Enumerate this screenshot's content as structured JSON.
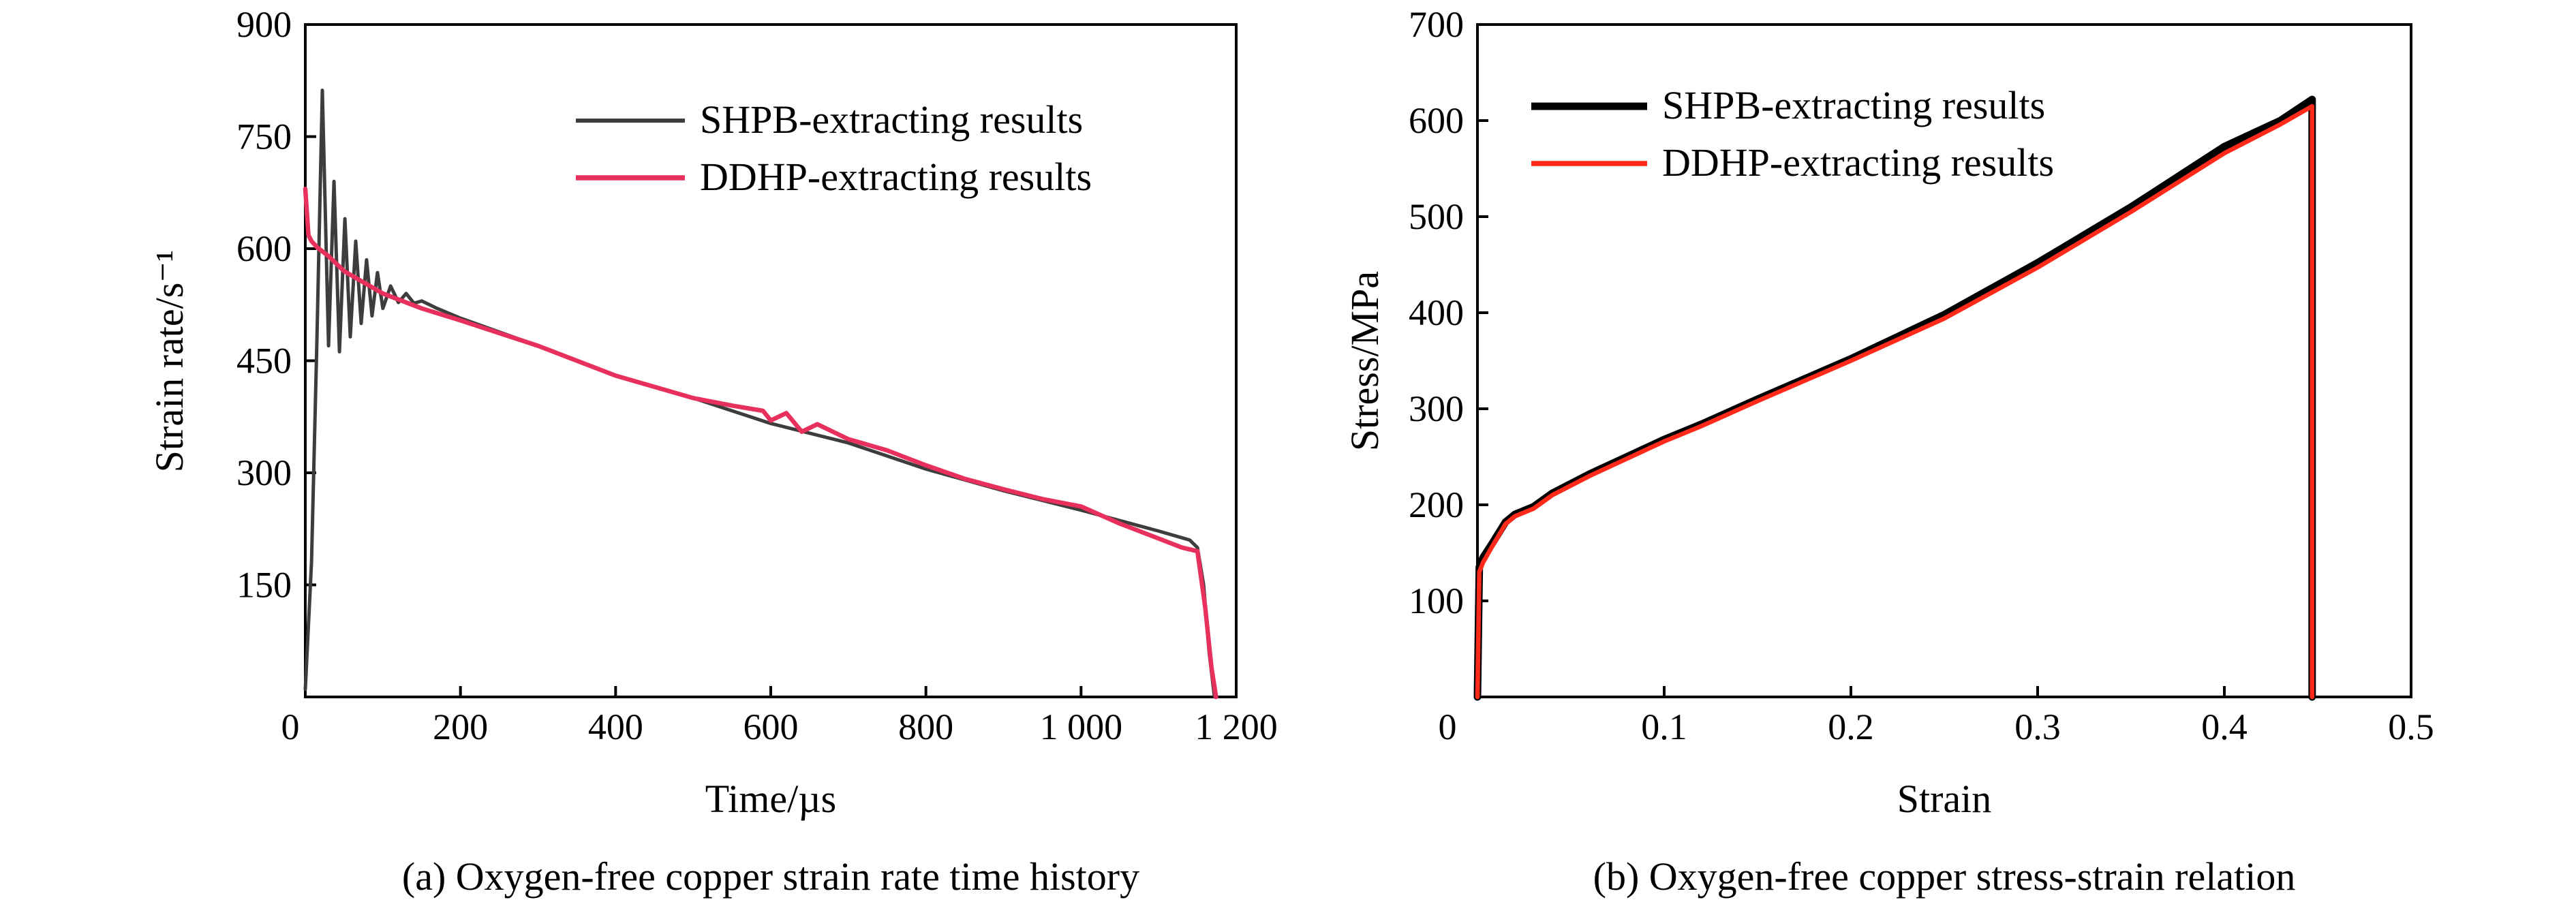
{
  "chart_data": [
    {
      "type": "line",
      "caption": "(a) Oxygen-free copper strain rate time history",
      "xlabel": "Time/µs",
      "ylabel": "Strain rate/s⁻¹",
      "xlim": [
        0,
        1200
      ],
      "ylim": [
        0,
        900
      ],
      "xticks": [
        0,
        200,
        400,
        600,
        800,
        1000,
        1200
      ],
      "xtick_labels": [
        "0",
        "200",
        "400",
        "600",
        "800",
        "1 000",
        "1 200"
      ],
      "yticks": [
        150,
        300,
        450,
        600,
        750,
        900
      ],
      "ytick_labels": [
        "150",
        "300",
        "450",
        "600",
        "750",
        "900"
      ],
      "grid": false,
      "legend_position": "top-right",
      "series": [
        {
          "name": "SHPB-extracting results",
          "color": "#3d3d3d",
          "x": [
            0,
            8,
            15,
            22,
            30,
            37,
            44,
            51,
            58,
            65,
            72,
            79,
            86,
            93,
            100,
            110,
            120,
            130,
            140,
            150,
            170,
            200,
            300,
            400,
            500,
            600,
            700,
            800,
            900,
            1000,
            1100,
            1140,
            1150,
            1158,
            1165,
            1172
          ],
          "y": [
            10,
            180,
            480,
            812,
            470,
            690,
            462,
            640,
            482,
            610,
            500,
            585,
            510,
            568,
            520,
            550,
            528,
            540,
            527,
            530,
            520,
            507,
            470,
            430,
            400,
            366,
            340,
            305,
            276,
            250,
            222,
            210,
            200,
            150,
            60,
            0
          ]
        },
        {
          "name": "DDHP-extracting results",
          "color": "#e8305c",
          "x": [
            0,
            4,
            8,
            15,
            30,
            50,
            100,
            150,
            200,
            300,
            400,
            500,
            550,
            590,
            600,
            620,
            640,
            660,
            700,
            750,
            800,
            850,
            900,
            950,
            1000,
            1050,
            1100,
            1130,
            1150,
            1160,
            1168,
            1174
          ],
          "y": [
            680,
            618,
            610,
            602,
            590,
            570,
            540,
            520,
            504,
            470,
            430,
            400,
            390,
            383,
            370,
            380,
            355,
            365,
            345,
            330,
            310,
            292,
            278,
            265,
            255,
            232,
            212,
            200,
            195,
            120,
            40,
            0
          ]
        }
      ]
    },
    {
      "type": "line",
      "caption": "(b) Oxygen-free copper stress-strain relation",
      "xlabel": "Strain",
      "ylabel": "Stress/MPa",
      "xlim": [
        0,
        0.5
      ],
      "ylim": [
        0,
        700
      ],
      "xticks": [
        0,
        0.1,
        0.2,
        0.3,
        0.4,
        0.5
      ],
      "xtick_labels": [
        "0",
        "0.1",
        "0.2",
        "0.3",
        "0.4",
        "0.5"
      ],
      "yticks": [
        100,
        200,
        300,
        400,
        500,
        600,
        700
      ],
      "ytick_labels": [
        "100",
        "200",
        "300",
        "400",
        "500",
        "600",
        "700"
      ],
      "grid": false,
      "legend_position": "top-left",
      "series": [
        {
          "name": "SHPB-extracting results",
          "color": "#000000",
          "x": [
            0.0,
            0.001,
            0.003,
            0.008,
            0.015,
            0.02,
            0.03,
            0.04,
            0.06,
            0.08,
            0.1,
            0.12,
            0.15,
            0.2,
            0.25,
            0.3,
            0.35,
            0.4,
            0.43,
            0.447,
            0.447
          ],
          "y": [
            0,
            135,
            145,
            160,
            182,
            190,
            198,
            212,
            232,
            250,
            268,
            284,
            310,
            352,
            398,
            452,
            510,
            573,
            600,
            622,
            0
          ]
        },
        {
          "name": "DDHP-extracting results",
          "color": "#ff2a1a",
          "x": [
            0.0,
            0.001,
            0.003,
            0.008,
            0.015,
            0.02,
            0.03,
            0.04,
            0.06,
            0.08,
            0.1,
            0.12,
            0.15,
            0.2,
            0.25,
            0.3,
            0.35,
            0.4,
            0.43,
            0.447,
            0.447
          ],
          "y": [
            0,
            130,
            140,
            157,
            180,
            188,
            196,
            210,
            230,
            248,
            266,
            282,
            308,
            350,
            394,
            447,
            505,
            566,
            596,
            615,
            0
          ]
        }
      ]
    }
  ]
}
